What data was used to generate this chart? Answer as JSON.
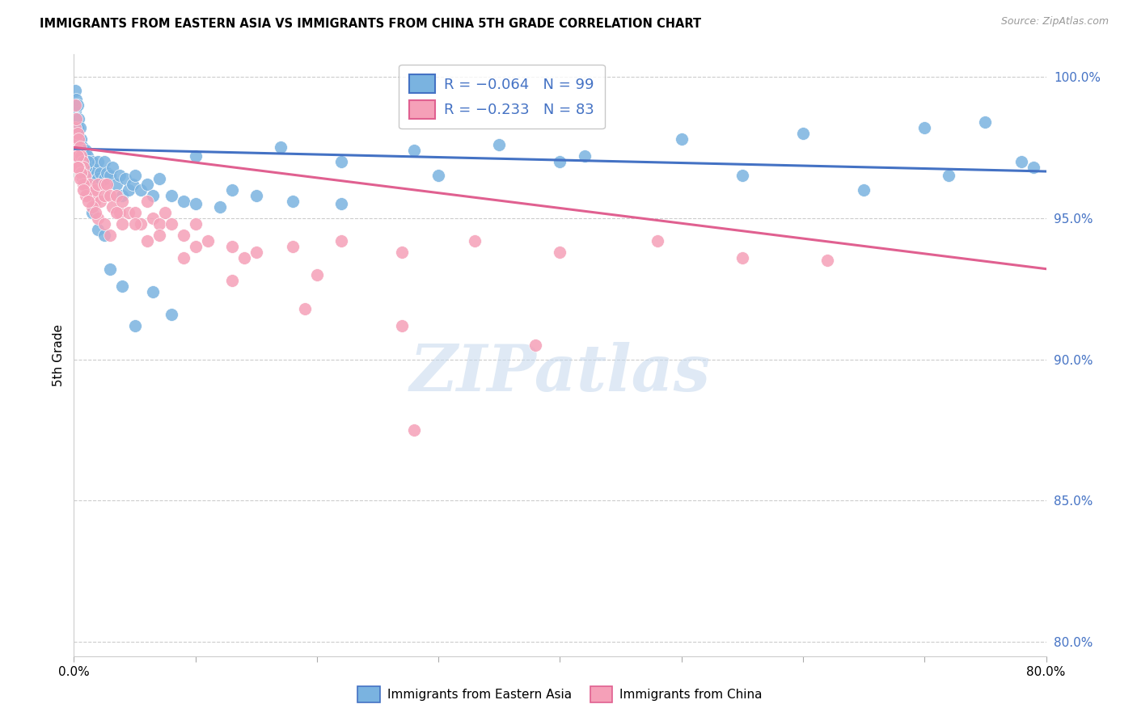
{
  "title": "IMMIGRANTS FROM EASTERN ASIA VS IMMIGRANTS FROM CHINA 5TH GRADE CORRELATION CHART",
  "source": "Source: ZipAtlas.com",
  "ylabel": "5th Grade",
  "blue_color": "#7ab3e0",
  "pink_color": "#f5a0b8",
  "blue_line_color": "#4472c4",
  "pink_line_color": "#e06090",
  "watermark": "ZIPatlas",
  "legend_label1": "Immigrants from Eastern Asia",
  "legend_label2": "Immigrants from China",
  "xmin": 0.0,
  "xmax": 0.8,
  "ymin": 0.795,
  "ymax": 1.008,
  "yticks": [
    0.8,
    0.85,
    0.9,
    0.95,
    1.0
  ],
  "yticklabels": [
    "80.0%",
    "85.0%",
    "90.0%",
    "95.0%",
    "100.0%"
  ],
  "xtick_left_label": "0.0%",
  "xtick_right_label": "80.0%",
  "blue_trend_x": [
    0.0,
    0.8
  ],
  "blue_trend_y": [
    0.9745,
    0.9665
  ],
  "pink_trend_x": [
    0.0,
    0.8
  ],
  "pink_trend_y": [
    0.975,
    0.932
  ],
  "blue_scatter_x": [
    0.001,
    0.001,
    0.002,
    0.002,
    0.002,
    0.003,
    0.003,
    0.003,
    0.003,
    0.004,
    0.004,
    0.004,
    0.004,
    0.005,
    0.005,
    0.005,
    0.005,
    0.006,
    0.006,
    0.006,
    0.007,
    0.007,
    0.007,
    0.008,
    0.008,
    0.008,
    0.009,
    0.009,
    0.01,
    0.01,
    0.011,
    0.011,
    0.012,
    0.012,
    0.013,
    0.014,
    0.015,
    0.015,
    0.016,
    0.017,
    0.018,
    0.02,
    0.02,
    0.022,
    0.025,
    0.025,
    0.027,
    0.03,
    0.032,
    0.035,
    0.038,
    0.04,
    0.042,
    0.045,
    0.048,
    0.05,
    0.055,
    0.06,
    0.065,
    0.07,
    0.08,
    0.09,
    0.1,
    0.12,
    0.15,
    0.18,
    0.22,
    0.28,
    0.35,
    0.42,
    0.5,
    0.6,
    0.7,
    0.75,
    0.003,
    0.004,
    0.006,
    0.008,
    0.01,
    0.012,
    0.015,
    0.02,
    0.025,
    0.03,
    0.04,
    0.05,
    0.065,
    0.08,
    0.1,
    0.13,
    0.17,
    0.22,
    0.3,
    0.4,
    0.55,
    0.65,
    0.72,
    0.78,
    0.79
  ],
  "blue_scatter_y": [
    0.995,
    0.988,
    0.992,
    0.985,
    0.978,
    0.99,
    0.982,
    0.975,
    0.972,
    0.985,
    0.978,
    0.972,
    0.968,
    0.982,
    0.976,
    0.971,
    0.967,
    0.978,
    0.972,
    0.967,
    0.975,
    0.97,
    0.965,
    0.974,
    0.969,
    0.964,
    0.972,
    0.967,
    0.974,
    0.968,
    0.972,
    0.966,
    0.97,
    0.965,
    0.968,
    0.966,
    0.97,
    0.964,
    0.968,
    0.965,
    0.967,
    0.97,
    0.964,
    0.966,
    0.97,
    0.964,
    0.966,
    0.965,
    0.968,
    0.962,
    0.965,
    0.958,
    0.964,
    0.96,
    0.962,
    0.965,
    0.96,
    0.962,
    0.958,
    0.964,
    0.958,
    0.956,
    0.955,
    0.954,
    0.958,
    0.956,
    0.955,
    0.974,
    0.976,
    0.972,
    0.978,
    0.98,
    0.982,
    0.984,
    0.972,
    0.968,
    0.968,
    0.965,
    0.968,
    0.97,
    0.952,
    0.946,
    0.944,
    0.932,
    0.926,
    0.912,
    0.924,
    0.916,
    0.972,
    0.96,
    0.975,
    0.97,
    0.965,
    0.97,
    0.965,
    0.96,
    0.965,
    0.97,
    0.968
  ],
  "pink_scatter_x": [
    0.001,
    0.001,
    0.002,
    0.002,
    0.003,
    0.003,
    0.003,
    0.004,
    0.004,
    0.005,
    0.005,
    0.006,
    0.006,
    0.007,
    0.007,
    0.008,
    0.009,
    0.01,
    0.011,
    0.012,
    0.013,
    0.015,
    0.017,
    0.018,
    0.02,
    0.022,
    0.025,
    0.025,
    0.027,
    0.03,
    0.032,
    0.035,
    0.038,
    0.04,
    0.045,
    0.05,
    0.055,
    0.06,
    0.065,
    0.07,
    0.075,
    0.08,
    0.09,
    0.1,
    0.11,
    0.13,
    0.15,
    0.18,
    0.22,
    0.27,
    0.33,
    0.4,
    0.48,
    0.55,
    0.62,
    0.003,
    0.004,
    0.006,
    0.008,
    0.01,
    0.015,
    0.02,
    0.03,
    0.04,
    0.06,
    0.09,
    0.13,
    0.19,
    0.27,
    0.38,
    0.003,
    0.005,
    0.008,
    0.012,
    0.018,
    0.025,
    0.035,
    0.05,
    0.07,
    0.1,
    0.14,
    0.2,
    0.28
  ],
  "pink_scatter_y": [
    0.99,
    0.982,
    0.985,
    0.978,
    0.98,
    0.974,
    0.968,
    0.978,
    0.972,
    0.975,
    0.968,
    0.972,
    0.965,
    0.97,
    0.964,
    0.968,
    0.965,
    0.962,
    0.96,
    0.958,
    0.962,
    0.958,
    0.956,
    0.96,
    0.962,
    0.956,
    0.962,
    0.958,
    0.962,
    0.958,
    0.954,
    0.958,
    0.952,
    0.956,
    0.952,
    0.952,
    0.948,
    0.956,
    0.95,
    0.948,
    0.952,
    0.948,
    0.944,
    0.948,
    0.942,
    0.94,
    0.938,
    0.94,
    0.942,
    0.938,
    0.942,
    0.938,
    0.942,
    0.936,
    0.935,
    0.972,
    0.968,
    0.966,
    0.962,
    0.958,
    0.954,
    0.95,
    0.944,
    0.948,
    0.942,
    0.936,
    0.928,
    0.918,
    0.912,
    0.905,
    0.968,
    0.964,
    0.96,
    0.956,
    0.952,
    0.948,
    0.952,
    0.948,
    0.944,
    0.94,
    0.936,
    0.93,
    0.875
  ]
}
